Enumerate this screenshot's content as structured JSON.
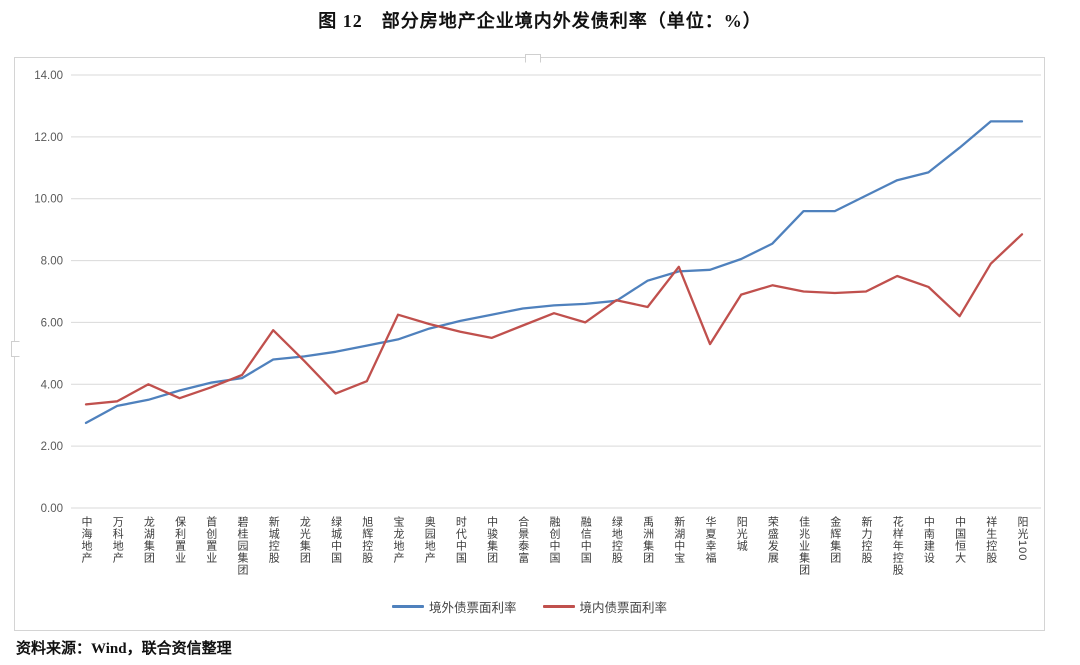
{
  "page": {
    "title": "图 12　部分房地产企业境内外发债利率（单位：%）",
    "source_note": "资料来源：Wind，联合资信整理"
  },
  "chart_data": {
    "type": "line",
    "title": "部分房地产企业境内外发债利率",
    "unit": "%",
    "ylim": [
      0,
      14
    ],
    "ytick_step": 2,
    "y_ticks": [
      "0.00",
      "2.00",
      "4.00",
      "6.00",
      "8.00",
      "10.00",
      "12.00",
      "14.00"
    ],
    "grid": "horizontal",
    "legend_position": "bottom",
    "gridline_color": "#d9d9d9",
    "axis_label_color": "#595959",
    "categories": [
      "中海地产",
      "万科地产",
      "龙湖集团",
      "保利置业",
      "首创置业",
      "碧桂园集团",
      "新城控股",
      "龙光集团",
      "绿城中国",
      "旭辉控股",
      "宝龙地产",
      "奥园地产",
      "时代中国",
      "中骏集团",
      "合景泰富",
      "融创中国",
      "融信中国",
      "绿地控股",
      "禹洲集团",
      "新湖中宝",
      "华夏幸福",
      "阳光城",
      "荣盛发展",
      "佳兆业集团",
      "金辉集团",
      "新力控股",
      "花样年控股",
      "中南建设",
      "中国恒大",
      "祥生控股",
      "阳光100"
    ],
    "series": [
      {
        "name": "境外债票面利率",
        "color": "#4F81BD",
        "values": [
          2.75,
          3.3,
          3.5,
          3.8,
          4.05,
          4.2,
          4.8,
          4.9,
          5.05,
          5.25,
          5.45,
          5.8,
          6.05,
          6.25,
          6.45,
          6.55,
          6.6,
          6.7,
          7.35,
          7.65,
          7.7,
          8.05,
          8.55,
          9.6,
          9.6,
          10.1,
          10.6,
          10.85,
          11.65,
          12.5,
          12.5
        ]
      },
      {
        "name": "境内债票面利率",
        "color": "#C0504D",
        "values": [
          3.35,
          3.45,
          4.0,
          3.55,
          3.9,
          4.3,
          5.75,
          4.75,
          3.7,
          4.1,
          6.25,
          5.95,
          5.7,
          5.5,
          5.9,
          6.3,
          6.0,
          6.72,
          6.5,
          7.8,
          5.3,
          6.9,
          7.2,
          7.0,
          6.95,
          7.0,
          7.5,
          7.15,
          6.2,
          7.9,
          8.85
        ]
      }
    ]
  }
}
